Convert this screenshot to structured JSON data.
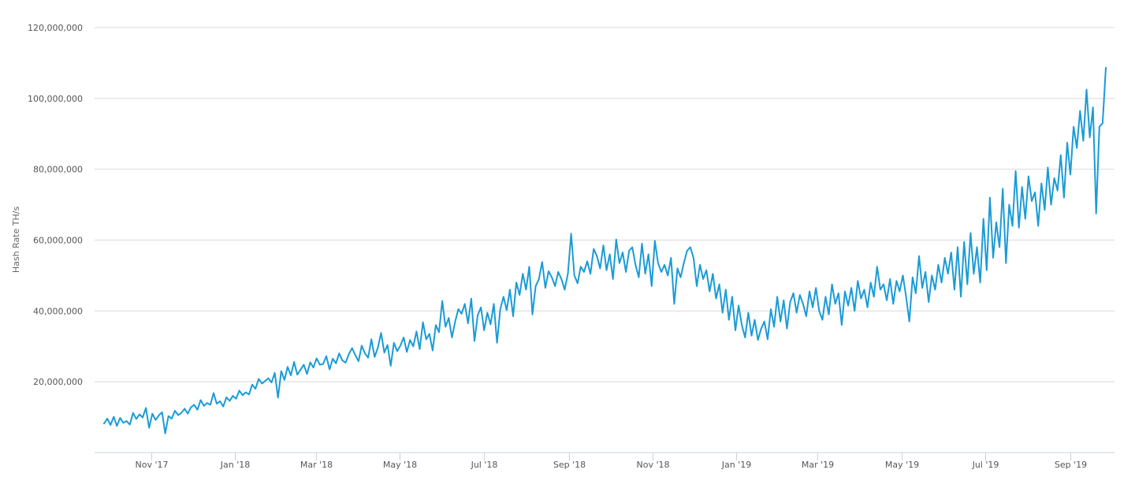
{
  "chart_data": {
    "type": "line",
    "title": "",
    "xlabel": "",
    "ylabel": "Hash Rate TH/s",
    "ylim": [
      0,
      120000000
    ],
    "grid": true,
    "legend": null,
    "y_ticks": [
      {
        "value": 20000000,
        "label": "20,000,000"
      },
      {
        "value": 40000000,
        "label": "40,000,000"
      },
      {
        "value": 60000000,
        "label": "60,000,000"
      },
      {
        "value": 80000000,
        "label": "80,000,000"
      },
      {
        "value": 100000000,
        "label": "100,000,000"
      },
      {
        "value": 120000000,
        "label": "120,000,000"
      }
    ],
    "x_ticks": [
      {
        "label": "Nov '17",
        "day": 25
      },
      {
        "label": "Jan '18",
        "day": 86
      },
      {
        "label": "Mar '18",
        "day": 145
      },
      {
        "label": "May '18",
        "day": 206
      },
      {
        "label": "Jul '18",
        "day": 267
      },
      {
        "label": "Sep '18",
        "day": 329
      },
      {
        "label": "Nov '18",
        "day": 390
      },
      {
        "label": "Jan '19",
        "day": 451
      },
      {
        "label": "Mar '19",
        "day": 510
      },
      {
        "label": "May '19",
        "day": 571
      },
      {
        "label": "Jul '19",
        "day": 632
      },
      {
        "label": "Sep '19",
        "day": 694
      }
    ],
    "x_range_days": [
      -5,
      730
    ],
    "series": [
      {
        "name": "Hash Rate",
        "color": "#1a9bd7",
        "step_days": 3,
        "start_day": 0,
        "values_millions": [
          8.2,
          9.6,
          7.8,
          10.1,
          7.5,
          9.8,
          8.4,
          8.9,
          7.9,
          11.2,
          9.5,
          10.8,
          9.9,
          12.6,
          7.0,
          11.0,
          9.2,
          10.5,
          11.4,
          5.4,
          10.3,
          9.6,
          11.8,
          10.6,
          11.2,
          12.4,
          11.0,
          12.8,
          13.5,
          12.1,
          14.8,
          13.2,
          14.0,
          13.5,
          16.8,
          13.8,
          14.5,
          13.0,
          15.6,
          14.6,
          16.0,
          15.2,
          17.5,
          16.2,
          17.0,
          16.4,
          19.2,
          18.0,
          20.8,
          19.5,
          20.2,
          21.0,
          19.8,
          22.5,
          15.5,
          23.0,
          20.5,
          24.2,
          21.8,
          25.6,
          22.0,
          23.4,
          24.8,
          22.2,
          25.5,
          24.0,
          26.6,
          24.8,
          25.0,
          27.2,
          23.5,
          26.5,
          25.2,
          28.0,
          26.0,
          25.4,
          27.8,
          29.5,
          27.5,
          25.8,
          30.2,
          28.0,
          26.8,
          32.0,
          27.0,
          29.6,
          33.8,
          28.2,
          30.4,
          24.5,
          31.0,
          28.6,
          30.2,
          32.5,
          28.4,
          31.8,
          30.0,
          34.2,
          29.2,
          36.8,
          32.0,
          33.5,
          28.8,
          36.0,
          34.0,
          42.8,
          35.5,
          38.0,
          32.5,
          37.0,
          40.5,
          39.2,
          42.0,
          36.5,
          43.5,
          31.5,
          38.8,
          41.0,
          34.5,
          39.5,
          36.2,
          42.0,
          31.0,
          40.5,
          44.0,
          40.2,
          46.0,
          38.5,
          48.0,
          44.5,
          50.5,
          46.0,
          52.5,
          39.0,
          47.0,
          49.0,
          53.8,
          46.5,
          51.2,
          49.5,
          47.0,
          51.0,
          49.0,
          46.0,
          50.5,
          61.8,
          50.0,
          47.8,
          52.5,
          51.0,
          54.0,
          50.5,
          57.5,
          55.5,
          52.0,
          58.5,
          51.5,
          56.0,
          49.0,
          60.2,
          53.5,
          56.5,
          51.0,
          57.0,
          58.0,
          53.0,
          49.5,
          59.0,
          50.5,
          56.0,
          47.0,
          59.8,
          53.5,
          51.0,
          53.0,
          50.0,
          55.0,
          42.0,
          52.0,
          49.5,
          53.5,
          57.0,
          58.0,
          55.0,
          47.0,
          53.0,
          49.0,
          51.5,
          45.5,
          50.5,
          43.5,
          47.5,
          39.5,
          46.0,
          37.5,
          44.0,
          34.5,
          41.5,
          36.0,
          32.5,
          39.5,
          33.0,
          37.5,
          31.8,
          35.0,
          37.0,
          32.0,
          40.5,
          35.5,
          44.0,
          37.0,
          43.0,
          35.0,
          42.5,
          45.0,
          39.5,
          44.5,
          42.0,
          38.5,
          45.5,
          41.0,
          46.5,
          40.0,
          37.5,
          44.0,
          39.0,
          47.5,
          42.0,
          45.0,
          36.0,
          45.5,
          41.5,
          46.5,
          40.0,
          48.5,
          43.5,
          46.0,
          41.0,
          48.0,
          44.0,
          52.5,
          46.0,
          47.5,
          43.0,
          49.0,
          42.0,
          48.5,
          45.5,
          50.0,
          44.0,
          37.0,
          49.5,
          45.0,
          55.5,
          46.5,
          51.0,
          42.5,
          50.0,
          46.0,
          53.0,
          48.0,
          55.0,
          50.5,
          56.5,
          46.0,
          58.0,
          44.0,
          59.5,
          47.5,
          62.0,
          50.5,
          58.0,
          48.0,
          66.0,
          51.5,
          72.0,
          55.0,
          65.0,
          58.0,
          74.5,
          53.5,
          70.0,
          64.0,
          79.5,
          63.5,
          75.0,
          66.0,
          78.0,
          71.0,
          73.5,
          64.0,
          76.0,
          68.5,
          80.5,
          70.0,
          77.5,
          74.0,
          84.0,
          72.0,
          87.5,
          78.5,
          92.0,
          86.0,
          96.5,
          88.0,
          102.5,
          89.0,
          97.5,
          67.5,
          92.0,
          93.0,
          108.7
        ]
      }
    ]
  }
}
